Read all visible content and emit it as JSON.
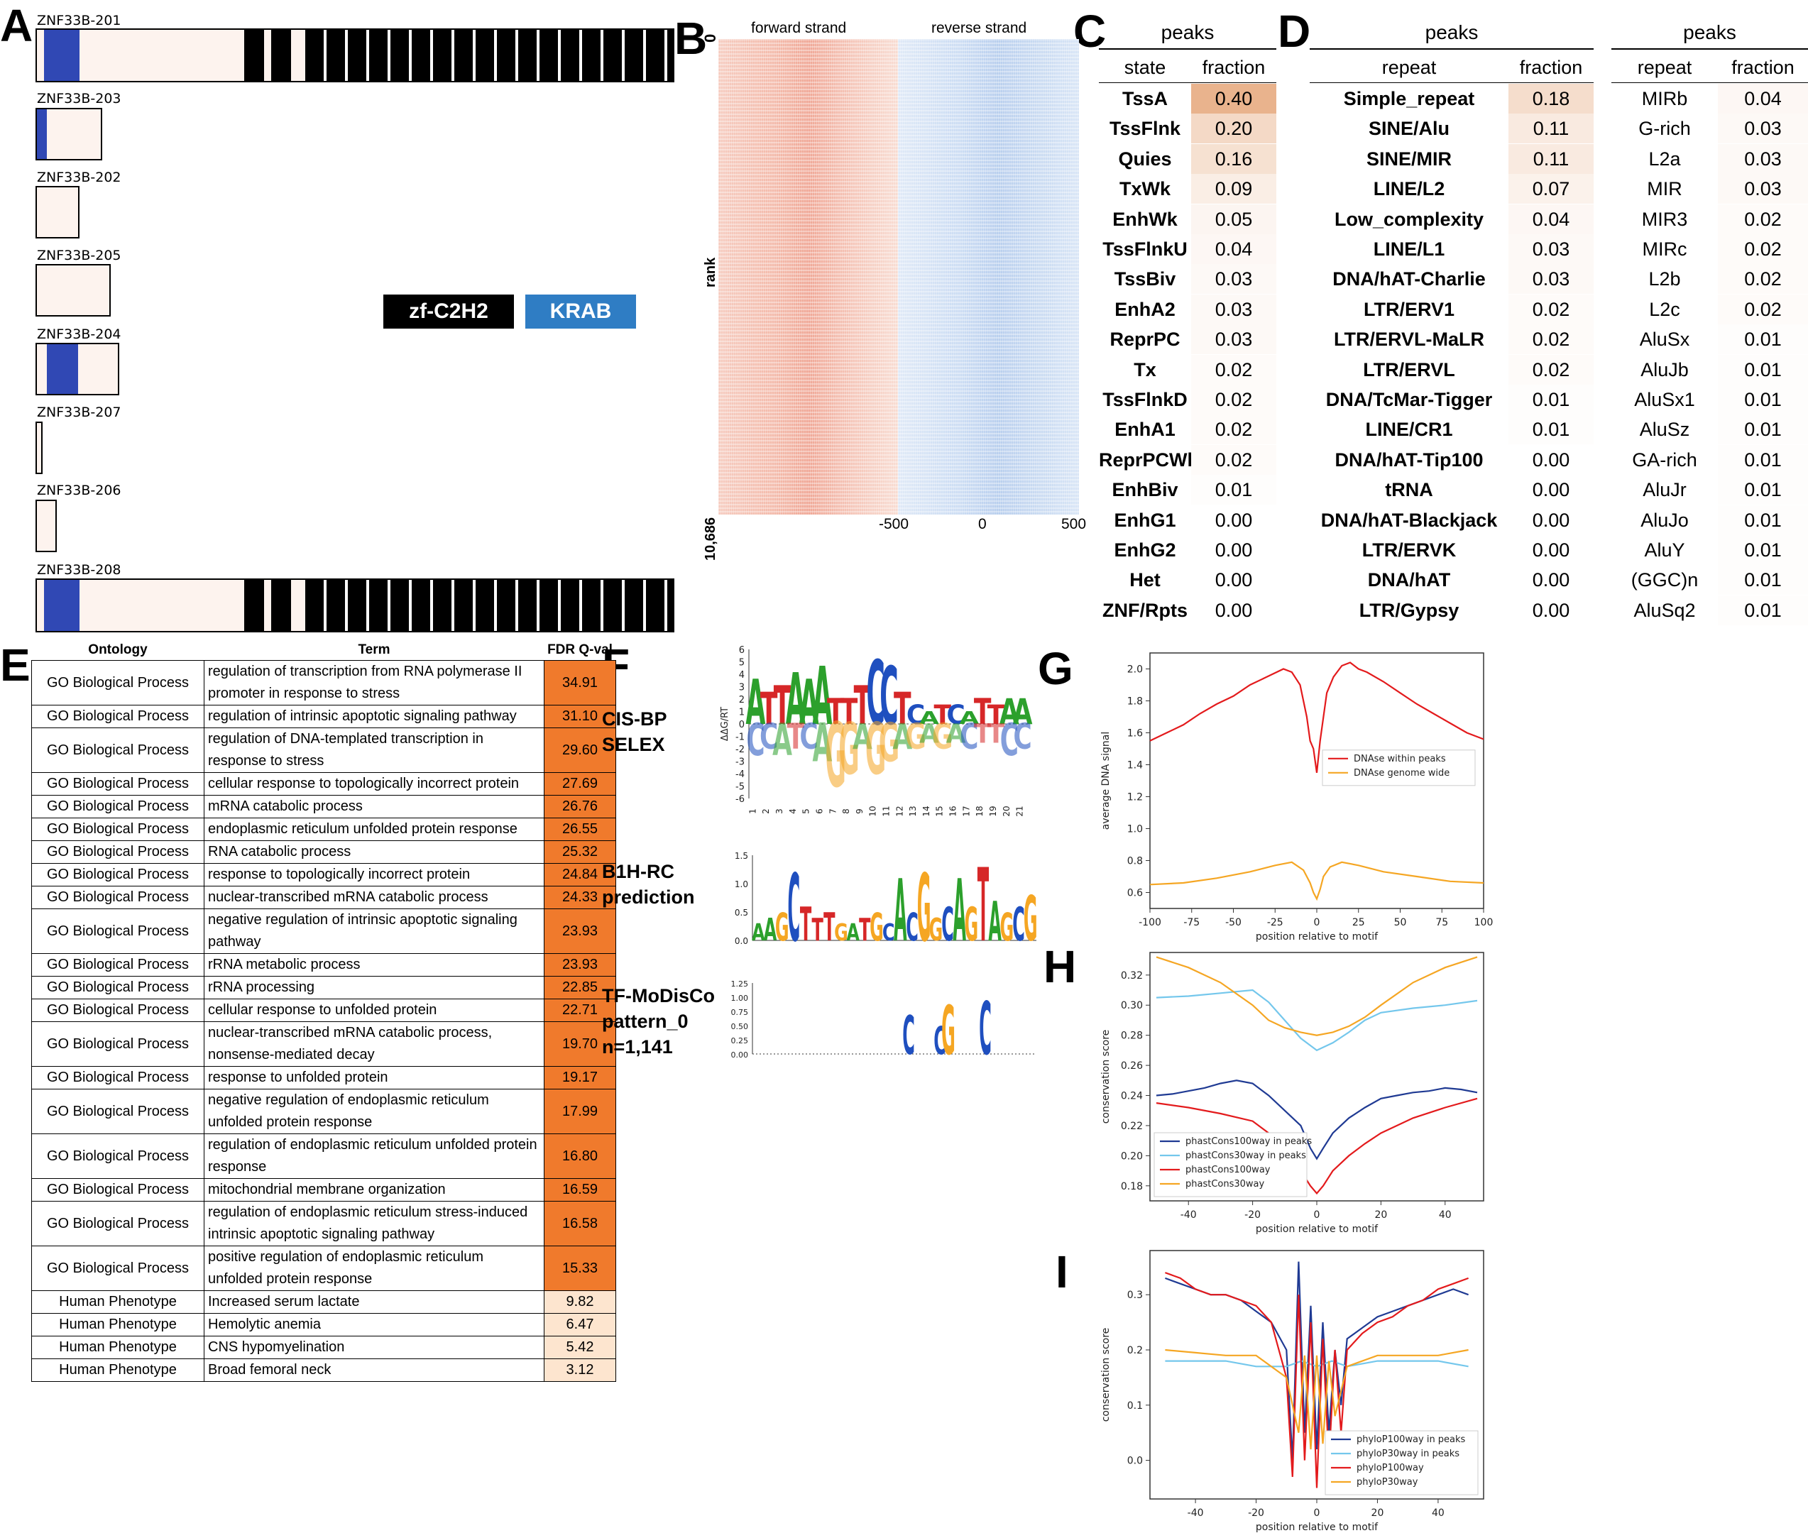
{
  "panels": {
    "A": "A",
    "B": "B",
    "C": "C",
    "D": "D",
    "E": "E",
    "F": "F",
    "G": "G",
    "H": "H",
    "I": "I"
  },
  "panelA": {
    "transcripts": [
      {
        "name": "ZNF33B-201",
        "domains": "full"
      },
      {
        "name": "ZNF33B-203",
        "domains": "krab"
      },
      {
        "name": "ZNF33B-202",
        "domains": "none"
      },
      {
        "name": "ZNF33B-205",
        "domains": "none"
      },
      {
        "name": "ZNF33B-204",
        "domains": "krab"
      },
      {
        "name": "ZNF33B-207",
        "domains": "none"
      },
      {
        "name": "ZNF33B-206",
        "domains": "none"
      },
      {
        "name": "ZNF33B-208",
        "domains": "full"
      }
    ],
    "legend": {
      "zf": "zf-C2H2",
      "krab": "KRAB"
    },
    "colors": {
      "krab": "#3048b4",
      "zf": "#000000",
      "body": "#fdf3ee"
    }
  },
  "panelB": {
    "forward": "forward strand",
    "reverse": "reverse strand",
    "ylabel": "rank",
    "ytop": "0",
    "ybottom": "10,686",
    "xticks": [
      "-500",
      "0",
      "500"
    ]
  },
  "panelC": {
    "title": "peaks",
    "col1": "state",
    "col2": "fraction",
    "rows": [
      [
        "TssA",
        "0.40"
      ],
      [
        "TssFlnk",
        "0.20"
      ],
      [
        "Quies",
        "0.16"
      ],
      [
        "TxWk",
        "0.09"
      ],
      [
        "EnhWk",
        "0.05"
      ],
      [
        "TssFlnkU",
        "0.04"
      ],
      [
        "TssBiv",
        "0.03"
      ],
      [
        "EnhA2",
        "0.03"
      ],
      [
        "ReprPC",
        "0.03"
      ],
      [
        "Tx",
        "0.02"
      ],
      [
        "TssFlnkD",
        "0.02"
      ],
      [
        "EnhA1",
        "0.02"
      ],
      [
        "ReprPCWk",
        "0.02"
      ],
      [
        "EnhBiv",
        "0.01"
      ],
      [
        "EnhG1",
        "0.00"
      ],
      [
        "EnhG2",
        "0.00"
      ],
      [
        "Het",
        "0.00"
      ],
      [
        "ZNF/Rpts",
        "0.00"
      ]
    ]
  },
  "panelD": {
    "title": "peaks",
    "col1": "repeat",
    "col2": "fraction",
    "rows": [
      [
        "Simple_repeat",
        "0.18"
      ],
      [
        "SINE/Alu",
        "0.11"
      ],
      [
        "SINE/MIR",
        "0.11"
      ],
      [
        "LINE/L2",
        "0.07"
      ],
      [
        "Low_complexity",
        "0.04"
      ],
      [
        "LINE/L1",
        "0.03"
      ],
      [
        "DNA/hAT-Charlie",
        "0.03"
      ],
      [
        "LTR/ERV1",
        "0.02"
      ],
      [
        "LTR/ERVL-MaLR",
        "0.02"
      ],
      [
        "LTR/ERVL",
        "0.02"
      ],
      [
        "DNA/TcMar-Tigger",
        "0.01"
      ],
      [
        "LINE/CR1",
        "0.01"
      ],
      [
        "DNA/hAT-Tip100",
        "0.00"
      ],
      [
        "tRNA",
        "0.00"
      ],
      [
        "DNA/hAT-Blackjack",
        "0.00"
      ],
      [
        "LTR/ERVK",
        "0.00"
      ],
      [
        "DNA/hAT",
        "0.00"
      ],
      [
        "LTR/Gypsy",
        "0.00"
      ]
    ]
  },
  "panelD2": {
    "title": "peaks",
    "col1": "repeat",
    "col2": "fraction",
    "rows": [
      [
        "MIRb",
        "0.04"
      ],
      [
        "G-rich",
        "0.03"
      ],
      [
        "L2a",
        "0.03"
      ],
      [
        "MIR",
        "0.03"
      ],
      [
        "MIR3",
        "0.02"
      ],
      [
        "MIRc",
        "0.02"
      ],
      [
        "L2b",
        "0.02"
      ],
      [
        "L2c",
        "0.02"
      ],
      [
        "AluSx",
        "0.01"
      ],
      [
        "AluJb",
        "0.01"
      ],
      [
        "AluSx1",
        "0.01"
      ],
      [
        "AluSz",
        "0.01"
      ],
      [
        "GA-rich",
        "0.01"
      ],
      [
        "AluJr",
        "0.01"
      ],
      [
        "AluJo",
        "0.01"
      ],
      [
        "AluY",
        "0.01"
      ],
      [
        "(GGC)n",
        "0.01"
      ],
      [
        "AluSq2",
        "0.01"
      ]
    ]
  },
  "panelE": {
    "headers": [
      "Ontology",
      "Term",
      "FDR Q-val"
    ],
    "rows": [
      [
        "GO Biological Process",
        "regulation of transcription from RNA polymerase II promoter in response to stress",
        "34.91"
      ],
      [
        "GO Biological Process",
        "regulation of intrinsic apoptotic signaling pathway",
        "31.10"
      ],
      [
        "GO Biological Process",
        "regulation of DNA-templated transcription in response to stress",
        "29.60"
      ],
      [
        "GO Biological Process",
        "cellular response to topologically incorrect protein",
        "27.69"
      ],
      [
        "GO Biological Process",
        "mRNA catabolic process",
        "26.76"
      ],
      [
        "GO Biological Process",
        "endoplasmic reticulum unfolded protein response",
        "26.55"
      ],
      [
        "GO Biological Process",
        "RNA catabolic process",
        "25.32"
      ],
      [
        "GO Biological Process",
        "response to topologically incorrect protein",
        "24.84"
      ],
      [
        "GO Biological Process",
        "nuclear-transcribed mRNA catabolic process",
        "24.33"
      ],
      [
        "GO Biological Process",
        "negative regulation of intrinsic apoptotic signaling pathway",
        "23.93"
      ],
      [
        "GO Biological Process",
        "rRNA metabolic process",
        "23.93"
      ],
      [
        "GO Biological Process",
        "rRNA processing",
        "22.85"
      ],
      [
        "GO Biological Process",
        "cellular response to unfolded protein",
        "22.71"
      ],
      [
        "GO Biological Process",
        "nuclear-transcribed mRNA catabolic process, nonsense-mediated decay",
        "19.70"
      ],
      [
        "GO Biological Process",
        "response to unfolded protein",
        "19.17"
      ],
      [
        "GO Biological Process",
        "negative regulation of endoplasmic reticulum unfolded protein response",
        "17.99"
      ],
      [
        "GO Biological Process",
        "regulation of endoplasmic reticulum unfolded protein response",
        "16.80"
      ],
      [
        "GO Biological Process",
        "mitochondrial membrane organization",
        "16.59"
      ],
      [
        "GO Biological Process",
        "regulation of endoplasmic reticulum stress-induced intrinsic apoptotic signaling pathway",
        "16.58"
      ],
      [
        "GO Biological Process",
        "positive regulation of endoplasmic reticulum unfolded protein response",
        "15.33"
      ],
      [
        "Human Phenotype",
        "Increased serum lactate",
        "9.82"
      ],
      [
        "Human Phenotype",
        "Hemolytic anemia",
        "6.47"
      ],
      [
        "Human Phenotype",
        "CNS hypomyelination",
        "5.42"
      ],
      [
        "Human Phenotype",
        "Broad femoral neck",
        "3.12"
      ]
    ],
    "colors": {
      "high": "#f07a2c",
      "low": "#fde5cf"
    }
  },
  "panelF": {
    "labels": [
      {
        "line1": "CIS-BP",
        "line2": "SELEX",
        "line3": ""
      },
      {
        "line1": "B1H-RC",
        "line2": "prediction",
        "line3": ""
      },
      {
        "line1": "TF-MoDisCo",
        "line2": "pattern_0",
        "line3": "n=1,141"
      }
    ],
    "logo1": {
      "ylabel": "ΔΔG/RT",
      "yticks": [
        "6",
        "5",
        "4",
        "3",
        "2",
        "1",
        "0",
        "-1",
        "-2",
        "-3",
        "-4",
        "-5",
        "-6"
      ],
      "xticks": [
        "1",
        "2",
        "3",
        "4",
        "5",
        "6",
        "7",
        "8",
        "9",
        "10",
        "11",
        "12",
        "13",
        "14",
        "15",
        "16",
        "17",
        "18",
        "19",
        "20",
        "21"
      ],
      "top": [
        "A",
        "T",
        "T",
        "A",
        "A",
        "A",
        "T",
        "T",
        "T",
        "C",
        "C",
        "T",
        "C",
        "A",
        "T",
        "C",
        "A",
        "T",
        "T",
        "A",
        "A"
      ],
      "bottom": [
        "C",
        "C",
        "A",
        "T",
        "C",
        "A",
        "G",
        "G",
        "A",
        "G",
        "G",
        "A",
        "G",
        "A",
        "G",
        "A",
        "C",
        "T",
        "T",
        "C",
        "C"
      ]
    },
    "logo2": {
      "yticks": [
        "1.5",
        "1.0",
        "0.5",
        "0.0"
      ]
    },
    "logo3": {
      "yticks": [
        "1.25",
        "1.00",
        "0.75",
        "0.50",
        "0.25",
        "0.00"
      ]
    }
  },
  "chart_data": [
    {
      "type": "line",
      "panel": "G",
      "title": "",
      "xlabel": "position relative to motif",
      "ylabel": "average DNA signal",
      "xlim": [
        -100,
        100
      ],
      "ylim": [
        0.5,
        2.1
      ],
      "xticks": [
        "-100",
        "-75",
        "-50",
        "-25",
        "0",
        "25",
        "50",
        "75",
        "100"
      ],
      "yticks": [
        "0.6",
        "0.8",
        "1.0",
        "1.2",
        "1.4",
        "1.6",
        "1.8",
        "2.0"
      ],
      "legend_position": "right",
      "series": [
        {
          "name": "DNAse within peaks",
          "color": "#e31a1c",
          "x": [
            -100,
            -90,
            -80,
            -70,
            -60,
            -50,
            -40,
            -30,
            -20,
            -15,
            -10,
            -6,
            -4,
            -2,
            0,
            2,
            4,
            6,
            10,
            15,
            20,
            25,
            30,
            40,
            50,
            60,
            70,
            80,
            90,
            100
          ],
          "y": [
            1.55,
            1.6,
            1.65,
            1.72,
            1.78,
            1.83,
            1.9,
            1.95,
            2.0,
            1.98,
            1.9,
            1.7,
            1.55,
            1.5,
            1.35,
            1.55,
            1.7,
            1.85,
            1.95,
            2.02,
            2.04,
            2.0,
            1.98,
            1.92,
            1.85,
            1.78,
            1.72,
            1.66,
            1.6,
            1.56
          ]
        },
        {
          "name": "DNAse genome wide",
          "color": "#f5a623",
          "x": [
            -100,
            -80,
            -60,
            -40,
            -25,
            -15,
            -8,
            -4,
            -2,
            0,
            2,
            4,
            8,
            15,
            25,
            40,
            60,
            80,
            100
          ],
          "y": [
            0.65,
            0.66,
            0.69,
            0.73,
            0.77,
            0.79,
            0.74,
            0.66,
            0.6,
            0.56,
            0.62,
            0.7,
            0.76,
            0.79,
            0.77,
            0.73,
            0.7,
            0.67,
            0.66
          ]
        }
      ]
    },
    {
      "type": "line",
      "panel": "H",
      "title": "",
      "xlabel": "position relative to motif",
      "ylabel": "conservation score",
      "xlim": [
        -52,
        52
      ],
      "ylim": [
        0.17,
        0.335
      ],
      "xticks": [
        "-40",
        "-20",
        "0",
        "20",
        "40"
      ],
      "yticks": [
        "0.18",
        "0.20",
        "0.22",
        "0.24",
        "0.26",
        "0.28",
        "0.30",
        "0.32"
      ],
      "legend_position": "lower left",
      "series": [
        {
          "name": "phastCons100way in peaks",
          "color": "#1f3a93",
          "x": [
            -50,
            -45,
            -40,
            -35,
            -30,
            -25,
            -20,
            -15,
            -10,
            -5,
            -2,
            0,
            2,
            5,
            10,
            15,
            20,
            25,
            30,
            35,
            40,
            45,
            50
          ],
          "y": [
            0.24,
            0.241,
            0.243,
            0.245,
            0.248,
            0.25,
            0.248,
            0.24,
            0.23,
            0.22,
            0.205,
            0.198,
            0.205,
            0.215,
            0.225,
            0.232,
            0.238,
            0.24,
            0.242,
            0.243,
            0.245,
            0.244,
            0.242
          ]
        },
        {
          "name": "phastCons30way in peaks",
          "color": "#74c7ec",
          "x": [
            -50,
            -40,
            -30,
            -20,
            -15,
            -10,
            -5,
            0,
            5,
            10,
            15,
            20,
            30,
            40,
            50
          ],
          "y": [
            0.305,
            0.306,
            0.308,
            0.31,
            0.302,
            0.29,
            0.278,
            0.27,
            0.275,
            0.282,
            0.29,
            0.295,
            0.298,
            0.3,
            0.303
          ]
        },
        {
          "name": "phastCons100way",
          "color": "#e31a1c",
          "x": [
            -50,
            -40,
            -30,
            -20,
            -15,
            -10,
            -5,
            -2,
            0,
            2,
            5,
            10,
            15,
            20,
            30,
            40,
            50
          ],
          "y": [
            0.235,
            0.232,
            0.228,
            0.223,
            0.215,
            0.205,
            0.19,
            0.18,
            0.175,
            0.18,
            0.19,
            0.2,
            0.208,
            0.215,
            0.225,
            0.232,
            0.238
          ]
        },
        {
          "name": "phastCons30way",
          "color": "#f5a623",
          "x": [
            -50,
            -40,
            -30,
            -20,
            -15,
            -10,
            -5,
            0,
            5,
            10,
            15,
            20,
            30,
            40,
            50
          ],
          "y": [
            0.332,
            0.325,
            0.315,
            0.3,
            0.29,
            0.285,
            0.282,
            0.28,
            0.282,
            0.286,
            0.292,
            0.3,
            0.315,
            0.325,
            0.332
          ]
        }
      ]
    },
    {
      "type": "line",
      "panel": "I",
      "title": "",
      "xlabel": "position relative to motif",
      "ylabel": "conservation score",
      "xlim": [
        -55,
        55
      ],
      "ylim": [
        -0.07,
        0.38
      ],
      "xticks": [
        "-40",
        "-20",
        "0",
        "20",
        "40"
      ],
      "yticks": [
        "0.0",
        "0.1",
        "0.2",
        "0.3"
      ],
      "legend_position": "lower right",
      "series": [
        {
          "name": "phyloP100way in peaks",
          "color": "#1f3a93",
          "x": [
            -50,
            -45,
            -40,
            -35,
            -30,
            -25,
            -20,
            -15,
            -10,
            -8,
            -6,
            -4,
            -2,
            0,
            2,
            4,
            6,
            8,
            10,
            15,
            20,
            25,
            30,
            35,
            40,
            45,
            50
          ],
          "y": [
            0.33,
            0.32,
            0.31,
            0.3,
            0.3,
            0.29,
            0.27,
            0.25,
            0.2,
            0.0,
            0.36,
            0.05,
            0.28,
            0.02,
            0.25,
            0.05,
            0.2,
            0.1,
            0.22,
            0.24,
            0.26,
            0.27,
            0.28,
            0.29,
            0.3,
            0.31,
            0.3
          ]
        },
        {
          "name": "phyloP30way in peaks",
          "color": "#74c7ec",
          "x": [
            -50,
            -40,
            -30,
            -20,
            -10,
            -5,
            0,
            5,
            10,
            20,
            30,
            40,
            50
          ],
          "y": [
            0.18,
            0.18,
            0.18,
            0.17,
            0.17,
            0.18,
            0.17,
            0.18,
            0.17,
            0.18,
            0.18,
            0.18,
            0.17
          ]
        },
        {
          "name": "phyloP100way",
          "color": "#e31a1c",
          "x": [
            -50,
            -45,
            -40,
            -35,
            -30,
            -25,
            -20,
            -15,
            -10,
            -8,
            -6,
            -4,
            -2,
            0,
            2,
            4,
            6,
            8,
            10,
            15,
            20,
            25,
            30,
            35,
            40,
            45,
            50
          ],
          "y": [
            0.34,
            0.33,
            0.31,
            0.3,
            0.3,
            0.29,
            0.28,
            0.25,
            0.15,
            -0.03,
            0.3,
            0.0,
            0.25,
            -0.05,
            0.22,
            0.0,
            0.2,
            0.05,
            0.2,
            0.23,
            0.25,
            0.26,
            0.28,
            0.29,
            0.31,
            0.32,
            0.33
          ]
        },
        {
          "name": "phyloP30way",
          "color": "#f5a623",
          "x": [
            -50,
            -40,
            -30,
            -20,
            -10,
            -6,
            -4,
            -2,
            0,
            2,
            4,
            6,
            10,
            20,
            30,
            40,
            50
          ],
          "y": [
            0.2,
            0.195,
            0.19,
            0.19,
            0.15,
            0.05,
            0.19,
            0.02,
            0.19,
            0.03,
            0.18,
            0.08,
            0.17,
            0.19,
            0.19,
            0.19,
            0.2
          ]
        }
      ]
    }
  ]
}
